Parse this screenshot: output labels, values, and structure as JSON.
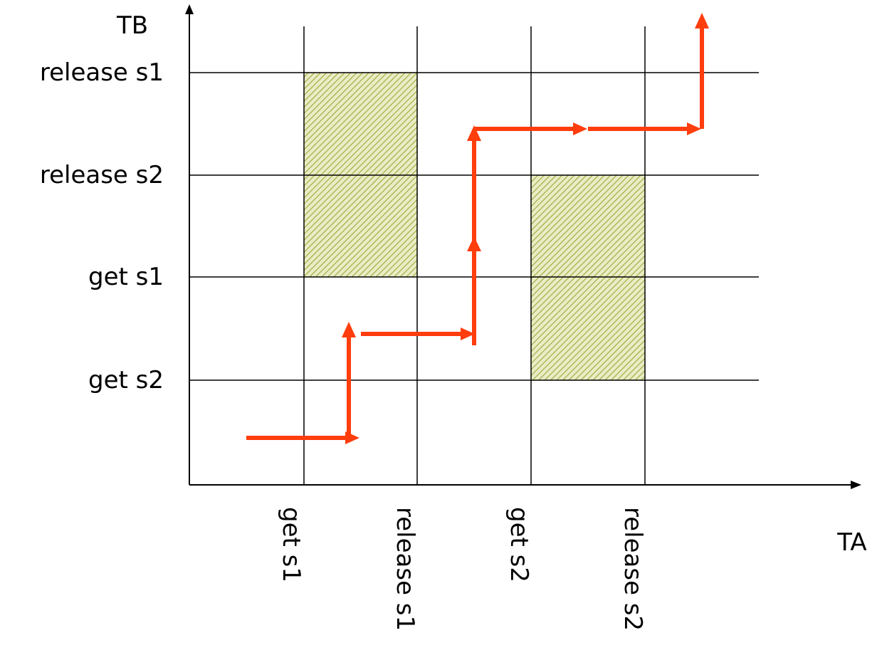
{
  "diagram": {
    "y_axis_label": "TB",
    "x_axis_label": "TA",
    "y_ticks": [
      "get s2",
      "get s1",
      "release s2",
      "release s1"
    ],
    "x_ticks": [
      "get s1",
      "release s1",
      "get s2",
      "release s2"
    ],
    "forbidden_regions": [
      {
        "resource": "s1",
        "ta_from": "get s1",
        "ta_to": "release s1",
        "tb_from": "get s1",
        "tb_to": "release s1"
      },
      {
        "resource": "s2",
        "ta_from": "get s2",
        "ta_to": "release s2",
        "tb_from": "get s2",
        "tb_to": "release s2"
      }
    ],
    "colors": {
      "axis": "#000000",
      "grid": "#000000",
      "path": "#ff3d0d",
      "region_fill": "#e9ecc4",
      "region_hatch": "#9aa83a"
    }
  }
}
